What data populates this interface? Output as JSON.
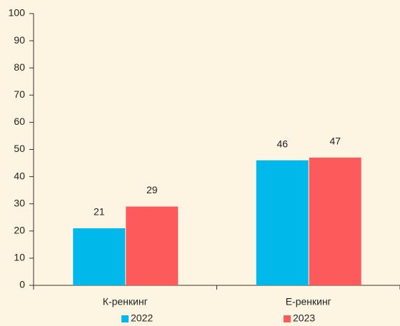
{
  "chart_data": {
    "type": "bar",
    "categories": [
      "К-ренкинг",
      "Е-ренкинг"
    ],
    "series": [
      {
        "name": "2022",
        "color": "#00b9ea",
        "values": [
          21,
          46
        ]
      },
      {
        "name": "2023",
        "color": "#fd5a5c",
        "values": [
          29,
          47
        ]
      }
    ],
    "ylim": [
      0,
      100
    ],
    "yticks": [
      0,
      10,
      20,
      30,
      40,
      50,
      60,
      70,
      80,
      90,
      100
    ],
    "grid": false,
    "legend": "bottom"
  }
}
